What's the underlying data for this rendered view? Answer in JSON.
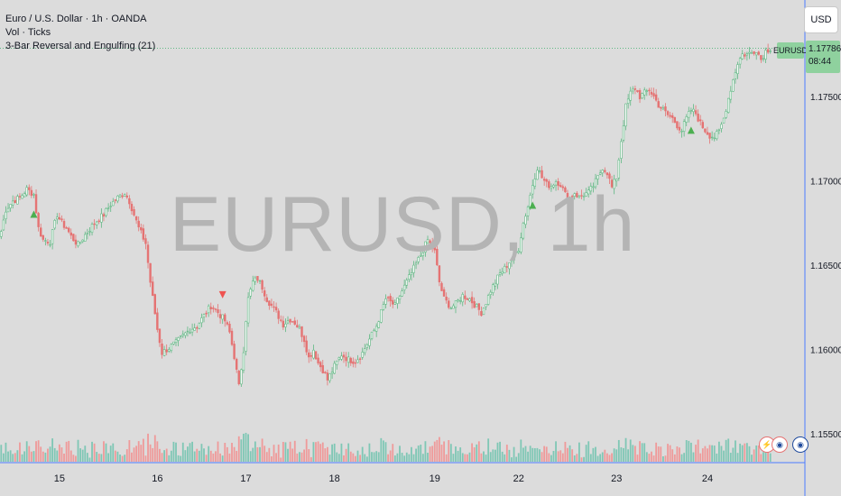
{
  "legend": {
    "symbol_line": "Euro / U.S. Dollar · 1h · OANDA",
    "volume_line": "Vol · Ticks",
    "indicator_line": "3-Bar Reversal and Engulfing (21)"
  },
  "watermark": "EURUSD, 1h",
  "currency_button": "USD",
  "symbol_tag": "EURUSD",
  "last_price": "1.17786",
  "countdown": "08:44",
  "events": [
    {
      "icon": "lightning-icon",
      "glyph": "⚡"
    },
    {
      "icon": "flag-icon",
      "glyph": "◉"
    },
    {
      "icon": "flag-icon",
      "glyph": "◉"
    }
  ],
  "colors": {
    "up": "#5fb883",
    "down": "#e57373",
    "up_volume": "#7fc7b5",
    "down_volume": "#ef9a9a",
    "signal_up": "#4caf50",
    "signal_down": "#ef5350",
    "crosshair": "#4d7cff"
  },
  "chart_data": {
    "type": "candlestick",
    "symbol": "EURUSD",
    "timeframe": "1h",
    "x_ticks": [
      "15",
      "16",
      "17",
      "18",
      "19",
      "22",
      "23",
      "24"
    ],
    "y_ticks": [
      "1.15500",
      "1.16000",
      "1.16500",
      "1.17000",
      "1.17500"
    ],
    "ylim": [
      1.153,
      1.18
    ],
    "last_price": 1.17786,
    "close_path": [
      [
        0,
        1.167
      ],
      [
        2,
        1.1683
      ],
      [
        5,
        1.1688
      ],
      [
        8,
        1.169
      ],
      [
        11,
        1.1695
      ],
      [
        14,
        1.1692
      ],
      [
        16,
        1.1672
      ],
      [
        18,
        1.1665
      ],
      [
        21,
        1.1664
      ],
      [
        24,
        1.168
      ],
      [
        26,
        1.1675
      ],
      [
        28,
        1.1672
      ],
      [
        30,
        1.1667
      ],
      [
        33,
        1.1662
      ],
      [
        36,
        1.1668
      ],
      [
        40,
        1.1675
      ],
      [
        44,
        1.168
      ],
      [
        47,
        1.1686
      ],
      [
        50,
        1.169
      ],
      [
        53,
        1.1693
      ],
      [
        55,
        1.1688
      ],
      [
        57,
        1.168
      ],
      [
        59,
        1.1672
      ],
      [
        62,
        1.1663
      ],
      [
        64,
        1.164
      ],
      [
        67,
        1.1612
      ],
      [
        69,
        1.1598
      ],
      [
        72,
        1.1601
      ],
      [
        75,
        1.1604
      ],
      [
        78,
        1.1608
      ],
      [
        81,
        1.1612
      ],
      [
        84,
        1.1614
      ],
      [
        87,
        1.162
      ],
      [
        90,
        1.1626
      ],
      [
        93,
        1.1622
      ],
      [
        96,
        1.1617
      ],
      [
        98,
        1.161
      ],
      [
        100,
        1.1596
      ],
      [
        102,
        1.1578
      ],
      [
        104,
        1.16
      ],
      [
        105,
        1.1618
      ],
      [
        106,
        1.163
      ],
      [
        108,
        1.164
      ],
      [
        110,
        1.1642
      ],
      [
        112,
        1.1637
      ],
      [
        114,
        1.163
      ],
      [
        116,
        1.1626
      ],
      [
        118,
        1.1622
      ],
      [
        121,
        1.1615
      ],
      [
        124,
        1.1618
      ],
      [
        126,
        1.1616
      ],
      [
        128,
        1.1612
      ],
      [
        130,
        1.1606
      ],
      [
        132,
        1.1595
      ],
      [
        134,
        1.16
      ],
      [
        136,
        1.1592
      ],
      [
        138,
        1.1588
      ],
      [
        140,
        1.1582
      ],
      [
        143,
        1.159
      ],
      [
        146,
        1.1597
      ],
      [
        149,
        1.1594
      ],
      [
        152,
        1.1593
      ],
      [
        155,
        1.1598
      ],
      [
        158,
        1.1606
      ],
      [
        161,
        1.1614
      ],
      [
        163,
        1.1622
      ],
      [
        165,
        1.163
      ],
      [
        167,
        1.1628
      ],
      [
        169,
        1.1626
      ],
      [
        171,
        1.1632
      ],
      [
        174,
        1.164
      ],
      [
        177,
        1.1648
      ],
      [
        180,
        1.1656
      ],
      [
        183,
        1.1665
      ],
      [
        186,
        1.1658
      ],
      [
        188,
        1.164
      ],
      [
        190,
        1.163
      ],
      [
        193,
        1.1625
      ],
      [
        195,
        1.1627
      ],
      [
        198,
        1.1632
      ],
      [
        201,
        1.163
      ],
      [
        204,
        1.1625
      ],
      [
        206,
        1.1622
      ],
      [
        208,
        1.1628
      ],
      [
        210,
        1.1635
      ],
      [
        212,
        1.164
      ],
      [
        214,
        1.1645
      ],
      [
        216,
        1.1648
      ],
      [
        218,
        1.1652
      ],
      [
        220,
        1.1655
      ],
      [
        222,
        1.166
      ],
      [
        224,
        1.1675
      ],
      [
        226,
        1.1685
      ],
      [
        228,
        1.1698
      ],
      [
        230,
        1.1708
      ],
      [
        232,
        1.1702
      ],
      [
        234,
        1.1698
      ],
      [
        236,
        1.1697
      ],
      [
        238,
        1.17
      ],
      [
        240,
        1.1698
      ],
      [
        242,
        1.1692
      ],
      [
        244,
        1.169
      ],
      [
        246,
        1.1693
      ],
      [
        248,
        1.169
      ],
      [
        250,
        1.1692
      ],
      [
        252,
        1.1693
      ],
      [
        254,
        1.1697
      ],
      [
        256,
        1.1702
      ],
      [
        258,
        1.1708
      ],
      [
        260,
        1.1705
      ],
      [
        262,
        1.1696
      ],
      [
        264,
        1.1702
      ],
      [
        266,
        1.1724
      ],
      [
        268,
        1.1744
      ],
      [
        270,
        1.1752
      ],
      [
        272,
        1.1755
      ],
      [
        274,
        1.175
      ],
      [
        276,
        1.1752
      ],
      [
        278,
        1.1754
      ],
      [
        280,
        1.175
      ],
      [
        282,
        1.1745
      ],
      [
        284,
        1.1742
      ],
      [
        286,
        1.1739
      ],
      [
        288,
        1.1737
      ],
      [
        290,
        1.1733
      ],
      [
        292,
        1.173
      ],
      [
        294,
        1.1737
      ],
      [
        296,
        1.1742
      ],
      [
        298,
        1.174
      ],
      [
        300,
        1.1734
      ],
      [
        302,
        1.173
      ],
      [
        304,
        1.1727
      ],
      [
        306,
        1.1726
      ],
      [
        308,
        1.1729
      ],
      [
        310,
        1.1737
      ],
      [
        312,
        1.1749
      ],
      [
        314,
        1.176
      ],
      [
        316,
        1.177
      ],
      [
        318,
        1.1775
      ],
      [
        320,
        1.1775
      ],
      [
        322,
        1.1776
      ],
      [
        324,
        1.1778
      ],
      [
        326,
        1.1772
      ],
      [
        328,
        1.1777
      ],
      [
        330,
        1.17786
      ]
    ],
    "signals": [
      {
        "bar": 14,
        "direction": "bullish"
      },
      {
        "bar": 95,
        "direction": "bearish"
      },
      {
        "bar": 228,
        "direction": "bullish"
      },
      {
        "bar": 296,
        "direction": "bullish"
      }
    ],
    "total_bars": 331
  }
}
